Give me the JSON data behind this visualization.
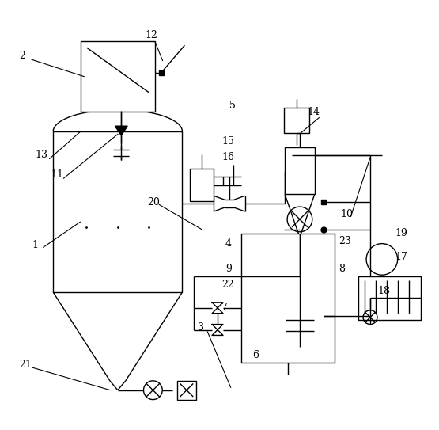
{
  "bg_color": "#ffffff",
  "line_color": "#000000",
  "fig_width": 5.55,
  "fig_height": 5.43,
  "dpi": 100
}
